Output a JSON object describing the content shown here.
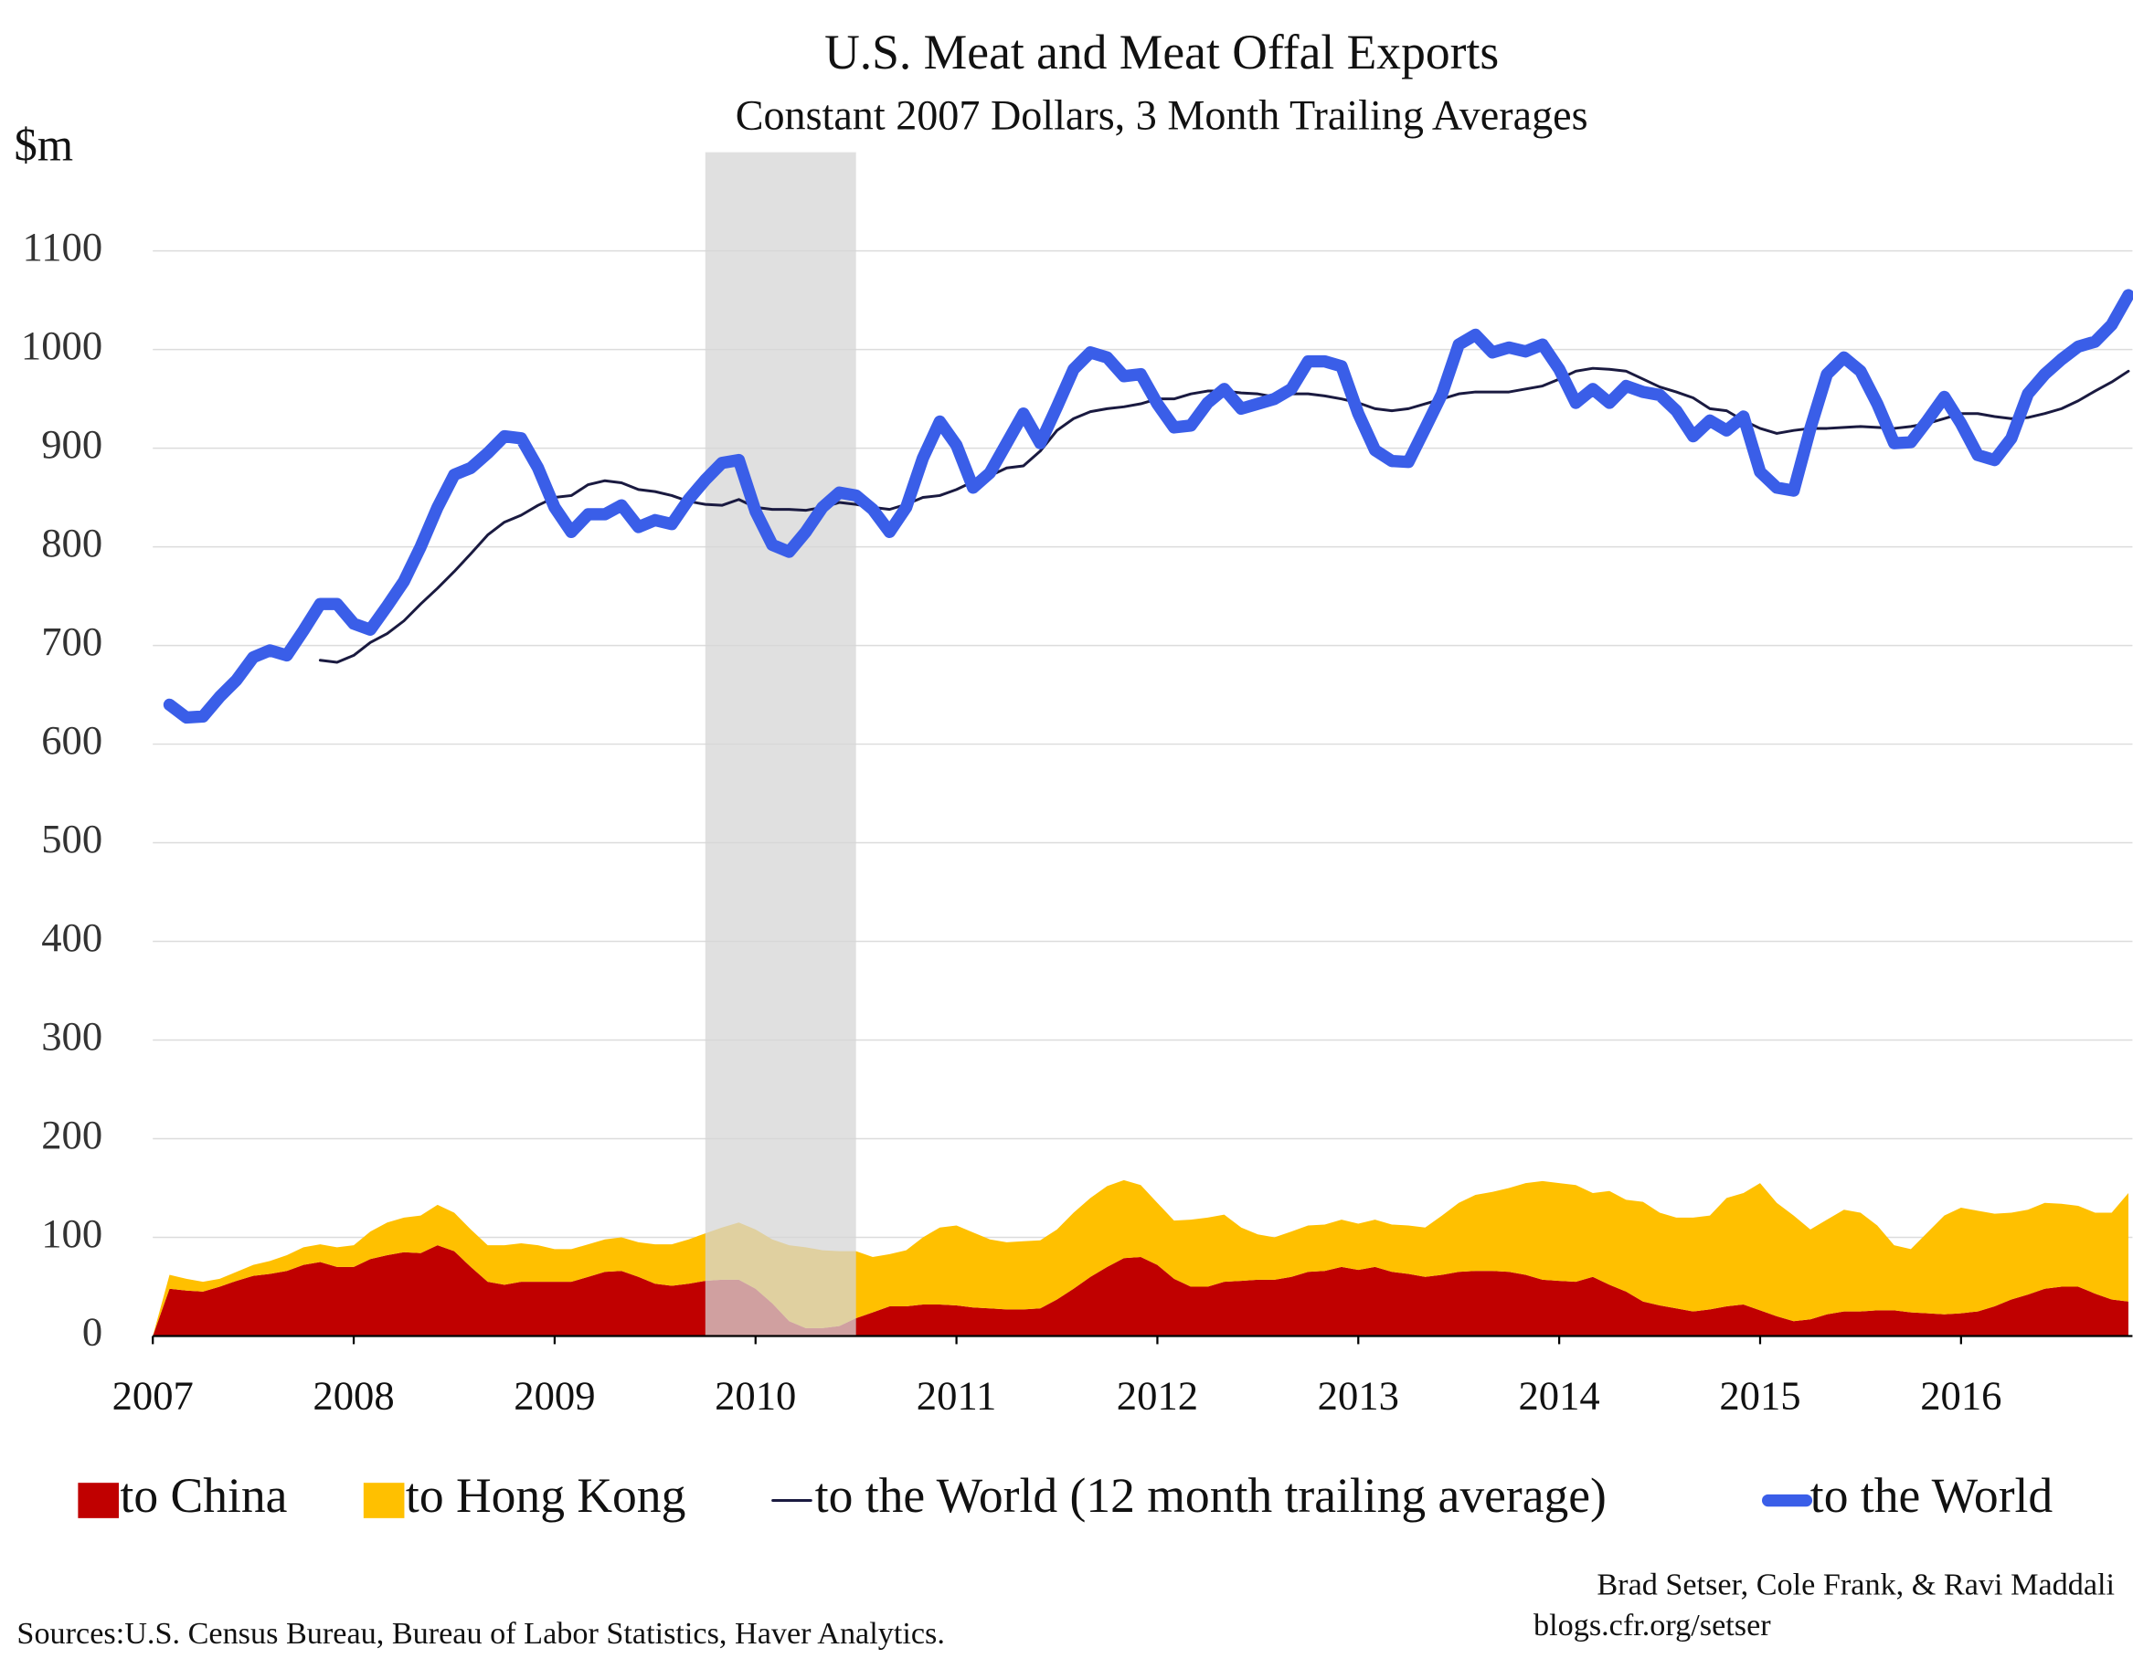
{
  "chart_data": {
    "type": "line",
    "title": "U.S. Meat and Meat Offal Exports",
    "subtitle": "Constant 2007 Dollars, 3 Month Trailing Averages",
    "y_axis_label": "$m",
    "credit": "Brad Setser, Cole Frank, & Ravi Maddali",
    "credit_url": "blogs.cfr.org/setser",
    "source": "Sources:U.S. Census Bureau, Bureau of Labor Statistics, Haver Analytics.",
    "ylim": [
      0,
      1200
    ],
    "yticks": [
      0,
      100,
      200,
      300,
      400,
      500,
      600,
      700,
      800,
      900,
      1000,
      1100
    ],
    "xlim": [
      2007,
      2016.833
    ],
    "xticks": [
      2007,
      2008,
      2009,
      2010,
      2011,
      2012,
      2013,
      2014,
      2015,
      2016
    ],
    "grid": true,
    "shaded_range": [
      2009.75,
      2010.5
    ],
    "shade_color": "#d6d6d6",
    "x": [
      2007,
      2007.083,
      2007.167,
      2007.25,
      2007.333,
      2007.417,
      2007.5,
      2007.583,
      2007.667,
      2007.75,
      2007.833,
      2007.917,
      2008,
      2008.083,
      2008.167,
      2008.25,
      2008.333,
      2008.417,
      2008.5,
      2008.583,
      2008.667,
      2008.75,
      2008.833,
      2008.917,
      2009,
      2009.083,
      2009.167,
      2009.25,
      2009.333,
      2009.417,
      2009.5,
      2009.583,
      2009.667,
      2009.75,
      2009.833,
      2009.917,
      2010,
      2010.083,
      2010.167,
      2010.25,
      2010.333,
      2010.417,
      2010.5,
      2010.583,
      2010.667,
      2010.75,
      2010.833,
      2010.917,
      2011,
      2011.083,
      2011.167,
      2011.25,
      2011.333,
      2011.417,
      2011.5,
      2011.583,
      2011.667,
      2011.75,
      2011.833,
      2011.917,
      2012,
      2012.083,
      2012.167,
      2012.25,
      2012.333,
      2012.417,
      2012.5,
      2012.583,
      2012.667,
      2012.75,
      2012.833,
      2012.917,
      2013,
      2013.083,
      2013.167,
      2013.25,
      2013.333,
      2013.417,
      2013.5,
      2013.583,
      2013.667,
      2013.75,
      2013.833,
      2013.917,
      2014,
      2014.083,
      2014.167,
      2014.25,
      2014.333,
      2014.417,
      2014.5,
      2014.583,
      2014.667,
      2014.75,
      2014.833,
      2014.917,
      2015,
      2015.083,
      2015.167,
      2015.25,
      2015.333,
      2015.417,
      2015.5,
      2015.583,
      2015.667,
      2015.75,
      2015.833,
      2015.917,
      2016,
      2016.083,
      2016.167,
      2016.25,
      2016.333,
      2016.417,
      2016.5,
      2016.583,
      2016.667,
      2016.75,
      2016.833
    ],
    "series": [
      {
        "name": "to China",
        "kind": "stacked_area",
        "color": "#c00000",
        "values": [
          0,
          48,
          46,
          45,
          50,
          56,
          61,
          63,
          66,
          72,
          75,
          70,
          70,
          78,
          82,
          85,
          84,
          92,
          86,
          70,
          55,
          52,
          55,
          55,
          55,
          55,
          60,
          65,
          66,
          60,
          53,
          51,
          53,
          56,
          57,
          57,
          48,
          33,
          15,
          8,
          8,
          10,
          18,
          24,
          30,
          30,
          32,
          32,
          31,
          29,
          28,
          27,
          27,
          28,
          37,
          48,
          60,
          70,
          79,
          80,
          72,
          58,
          50,
          50,
          55,
          56,
          57,
          57,
          60,
          65,
          66,
          70,
          67,
          70,
          65,
          63,
          60,
          62,
          65,
          66,
          66,
          65,
          62,
          57,
          56,
          55,
          60,
          52,
          45,
          35,
          31,
          28,
          25,
          27,
          30,
          32,
          26,
          20,
          15,
          17,
          22,
          25,
          25,
          26,
          26,
          24,
          23,
          22,
          23,
          25,
          30,
          37,
          42,
          48,
          50,
          50,
          43,
          37,
          35
        ]
      },
      {
        "name": "to Hong Kong",
        "kind": "stacked_area",
        "color": "#ffc000",
        "values": [
          0,
          14,
          12,
          10,
          8,
          9,
          11,
          13,
          16,
          18,
          18,
          20,
          22,
          28,
          33,
          35,
          38,
          41,
          39,
          38,
          37,
          40,
          39,
          37,
          33,
          33,
          33,
          33,
          34,
          35,
          40,
          42,
          45,
          48,
          53,
          58,
          60,
          65,
          77,
          82,
          79,
          76,
          68,
          56,
          53,
          57,
          68,
          78,
          81,
          76,
          70,
          68,
          69,
          69,
          71,
          77,
          80,
          82,
          79,
          73,
          63,
          59,
          68,
          70,
          68,
          54,
          46,
          43,
          46,
          47,
          47,
          48,
          47,
          48,
          48,
          49,
          50,
          60,
          70,
          77,
          80,
          85,
          93,
          100,
          99,
          98,
          85,
          95,
          93,
          101,
          94,
          92,
          95,
          95,
          110,
          113,
          129,
          115,
          107,
          91,
          96,
          103,
          100,
          86,
          66,
          64,
          82,
          100,
          107,
          102,
          94,
          88,
          86,
          87,
          84,
          82,
          82,
          88,
          110
        ]
      },
      {
        "name": "to the World (12 month trailing average)",
        "kind": "line",
        "color": "#1a1a40",
        "line_width": 2,
        "values": [
          null,
          null,
          null,
          null,
          null,
          null,
          null,
          null,
          null,
          null,
          685,
          683,
          690,
          703,
          712,
          725,
          742,
          758,
          775,
          793,
          812,
          825,
          832,
          842,
          850,
          852,
          863,
          867,
          865,
          858,
          856,
          852,
          846,
          843,
          842,
          848,
          840,
          838,
          838,
          837,
          840,
          845,
          843,
          840,
          838,
          843,
          850,
          852,
          858,
          866,
          872,
          880,
          882,
          897,
          918,
          930,
          937,
          940,
          942,
          945,
          950,
          950,
          955,
          958,
          958,
          956,
          955,
          952,
          955,
          955,
          953,
          950,
          946,
          940,
          938,
          940,
          945,
          950,
          955,
          957,
          957,
          957,
          960,
          963,
          970,
          978,
          981,
          980,
          978,
          970,
          962,
          957,
          951,
          940,
          938,
          928,
          920,
          915,
          918,
          920,
          920,
          921,
          922,
          921,
          920,
          922,
          925,
          930,
          935,
          935,
          932,
          930,
          931,
          935,
          940,
          948,
          958,
          967,
          978
        ]
      },
      {
        "name": "to the World",
        "kind": "line",
        "color": "#3a5ee8",
        "line_width": 9,
        "values": [
          null,
          640,
          627,
          628,
          648,
          665,
          688,
          695,
          690,
          715,
          742,
          742,
          722,
          716,
          740,
          765,
          800,
          840,
          873,
          880,
          895,
          912,
          910,
          880,
          840,
          815,
          833,
          833,
          842,
          820,
          827,
          823,
          848,
          868,
          885,
          888,
          836,
          802,
          795,
          815,
          840,
          855,
          852,
          838,
          815,
          840,
          890,
          927,
          903,
          860,
          875,
          905,
          935,
          905,
          942,
          980,
          997,
          992,
          973,
          975,
          945,
          921,
          923,
          946,
          960,
          940,
          945,
          950,
          960,
          988,
          988,
          983,
          935,
          898,
          887,
          886,
          920,
          955,
          1005,
          1015,
          997,
          1002,
          998,
          1005,
          980,
          946,
          960,
          946,
          963,
          957,
          954,
          938,
          912,
          928,
          918,
          932,
          876,
          860,
          857,
          920,
          975,
          992,
          978,
          945,
          905,
          906,
          928,
          952,
          925,
          893,
          888,
          910,
          955,
          975,
          990,
          1003,
          1008,
          1025,
          1055
        ]
      }
    ]
  }
}
